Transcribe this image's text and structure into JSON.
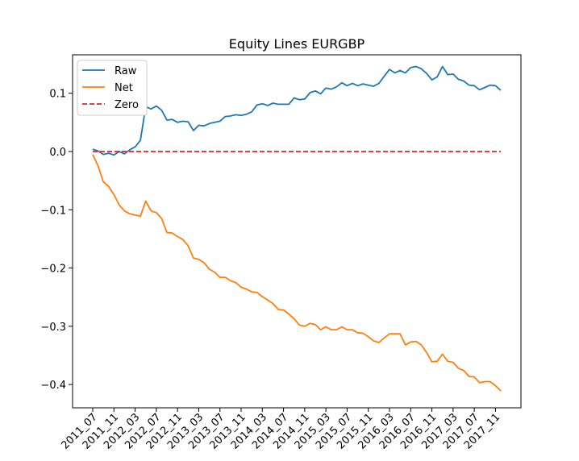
{
  "chart_data": {
    "type": "line",
    "title": "Equity Lines EURGBP",
    "xlabel": "",
    "ylabel": "",
    "ylim": [
      -0.44,
      0.166
    ],
    "yticks": [
      0.1,
      0.0,
      -0.1,
      -0.2,
      -0.3,
      -0.4
    ],
    "ytick_labels": [
      "0.1",
      "0.0",
      "−0.1",
      "−0.2",
      "−0.3",
      "−0.4"
    ],
    "x": [
      "2011_07",
      "2011_08",
      "2011_09",
      "2011_10",
      "2011_11",
      "2011_12",
      "2012_01",
      "2012_02",
      "2012_03",
      "2012_04",
      "2012_05",
      "2012_06",
      "2012_07",
      "2012_08",
      "2012_09",
      "2012_10",
      "2012_11",
      "2012_12",
      "2013_01",
      "2013_02",
      "2013_03",
      "2013_04",
      "2013_05",
      "2013_06",
      "2013_07",
      "2013_08",
      "2013_09",
      "2013_10",
      "2013_11",
      "2013_12",
      "2014_01",
      "2014_02",
      "2014_03",
      "2014_04",
      "2014_05",
      "2014_06",
      "2014_07",
      "2014_08",
      "2014_09",
      "2014_10",
      "2014_11",
      "2014_12",
      "2015_01",
      "2015_02",
      "2015_03",
      "2015_04",
      "2015_05",
      "2015_06",
      "2015_07",
      "2015_08",
      "2015_09",
      "2015_10",
      "2015_11",
      "2015_12",
      "2016_01",
      "2016_02",
      "2016_03",
      "2016_04",
      "2016_05",
      "2016_06",
      "2016_07",
      "2016_08",
      "2016_09",
      "2016_10",
      "2016_11",
      "2016_12",
      "2017_01",
      "2017_02",
      "2017_03",
      "2017_04",
      "2017_05",
      "2017_06",
      "2017_07",
      "2017_08",
      "2017_09",
      "2017_10",
      "2017_11",
      "2017_12"
    ],
    "xticks": [
      "2011_07",
      "2011_11",
      "2012_03",
      "2012_07",
      "2012_11",
      "2013_03",
      "2013_07",
      "2013_11",
      "2014_03",
      "2014_07",
      "2014_11",
      "2015_03",
      "2015_07",
      "2015_11",
      "2016_03",
      "2016_07",
      "2016_11",
      "2017_03",
      "2017_07",
      "2017_11"
    ],
    "series": [
      {
        "name": "Raw",
        "color": "#1f77b4",
        "style": "solid",
        "values": [
          0.004,
          0.001,
          -0.005,
          -0.003,
          -0.006,
          0.0,
          -0.004,
          0.003,
          0.008,
          0.019,
          0.077,
          0.073,
          0.078,
          0.071,
          0.054,
          0.055,
          0.05,
          0.052,
          0.051,
          0.036,
          0.045,
          0.044,
          0.048,
          0.05,
          0.052,
          0.06,
          0.061,
          0.063,
          0.062,
          0.064,
          0.068,
          0.08,
          0.082,
          0.079,
          0.083,
          0.081,
          0.081,
          0.081,
          0.092,
          0.089,
          0.09,
          0.101,
          0.104,
          0.099,
          0.109,
          0.107,
          0.111,
          0.118,
          0.113,
          0.117,
          0.113,
          0.116,
          0.114,
          0.112,
          0.117,
          0.129,
          0.141,
          0.135,
          0.139,
          0.135,
          0.144,
          0.146,
          0.142,
          0.134,
          0.123,
          0.128,
          0.146,
          0.132,
          0.133,
          0.124,
          0.121,
          0.114,
          0.113,
          0.106,
          0.11,
          0.114,
          0.113,
          0.105
        ]
      },
      {
        "name": "Net",
        "color": "#ff7f0e",
        "style": "solid",
        "values": [
          -0.005,
          -0.025,
          -0.052,
          -0.06,
          -0.074,
          -0.092,
          -0.102,
          -0.107,
          -0.109,
          -0.111,
          -0.085,
          -0.102,
          -0.105,
          -0.115,
          -0.139,
          -0.14,
          -0.146,
          -0.151,
          -0.162,
          -0.183,
          -0.185,
          -0.191,
          -0.202,
          -0.207,
          -0.216,
          -0.216,
          -0.222,
          -0.225,
          -0.233,
          -0.236,
          -0.241,
          -0.242,
          -0.249,
          -0.255,
          -0.261,
          -0.271,
          -0.272,
          -0.279,
          -0.287,
          -0.298,
          -0.3,
          -0.295,
          -0.297,
          -0.306,
          -0.301,
          -0.306,
          -0.306,
          -0.301,
          -0.306,
          -0.306,
          -0.311,
          -0.312,
          -0.318,
          -0.325,
          -0.328,
          -0.32,
          -0.313,
          -0.313,
          -0.313,
          -0.332,
          -0.327,
          -0.326,
          -0.332,
          -0.345,
          -0.361,
          -0.36,
          -0.348,
          -0.36,
          -0.362,
          -0.372,
          -0.376,
          -0.386,
          -0.387,
          -0.397,
          -0.395,
          -0.395,
          -0.402,
          -0.411
        ]
      },
      {
        "name": "Zero",
        "color": "#d62728",
        "style": "dashed",
        "values": [
          0,
          0,
          0,
          0,
          0,
          0,
          0,
          0,
          0,
          0,
          0,
          0,
          0,
          0,
          0,
          0,
          0,
          0,
          0,
          0,
          0,
          0,
          0,
          0,
          0,
          0,
          0,
          0,
          0,
          0,
          0,
          0,
          0,
          0,
          0,
          0,
          0,
          0,
          0,
          0,
          0,
          0,
          0,
          0,
          0,
          0,
          0,
          0,
          0,
          0,
          0,
          0,
          0,
          0,
          0,
          0,
          0,
          0,
          0,
          0,
          0,
          0,
          0,
          0,
          0,
          0,
          0,
          0,
          0,
          0,
          0,
          0,
          0,
          0,
          0,
          0,
          0,
          0
        ]
      }
    ],
    "legend_position": "top-left",
    "grid": false
  }
}
